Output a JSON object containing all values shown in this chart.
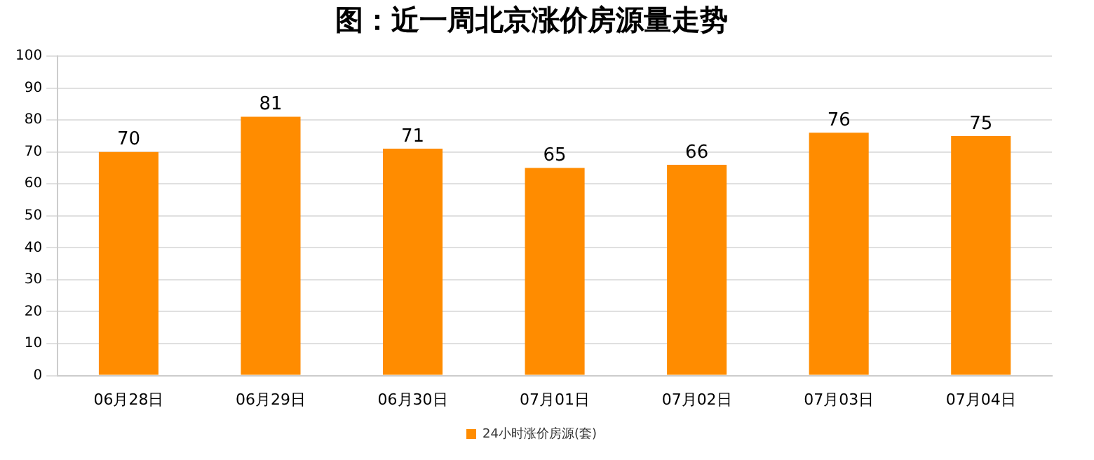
{
  "chart_data": {
    "type": "bar",
    "title": "图：近一周北京涨价房源量走势",
    "categories": [
      "06月28日",
      "06月29日",
      "06月30日",
      "07月01日",
      "07月02日",
      "07月03日",
      "07月04日"
    ],
    "series": [
      {
        "name": "24小时涨价房源(套)",
        "color": "#ff8c00",
        "values": [
          70,
          81,
          71,
          65,
          66,
          76,
          75
        ]
      }
    ],
    "ylim": [
      0,
      100
    ],
    "yticks": [
      0,
      10,
      20,
      30,
      40,
      50,
      60,
      70,
      80,
      90,
      100
    ],
    "grid": "y",
    "legend": "bottom",
    "data_labels": true
  }
}
